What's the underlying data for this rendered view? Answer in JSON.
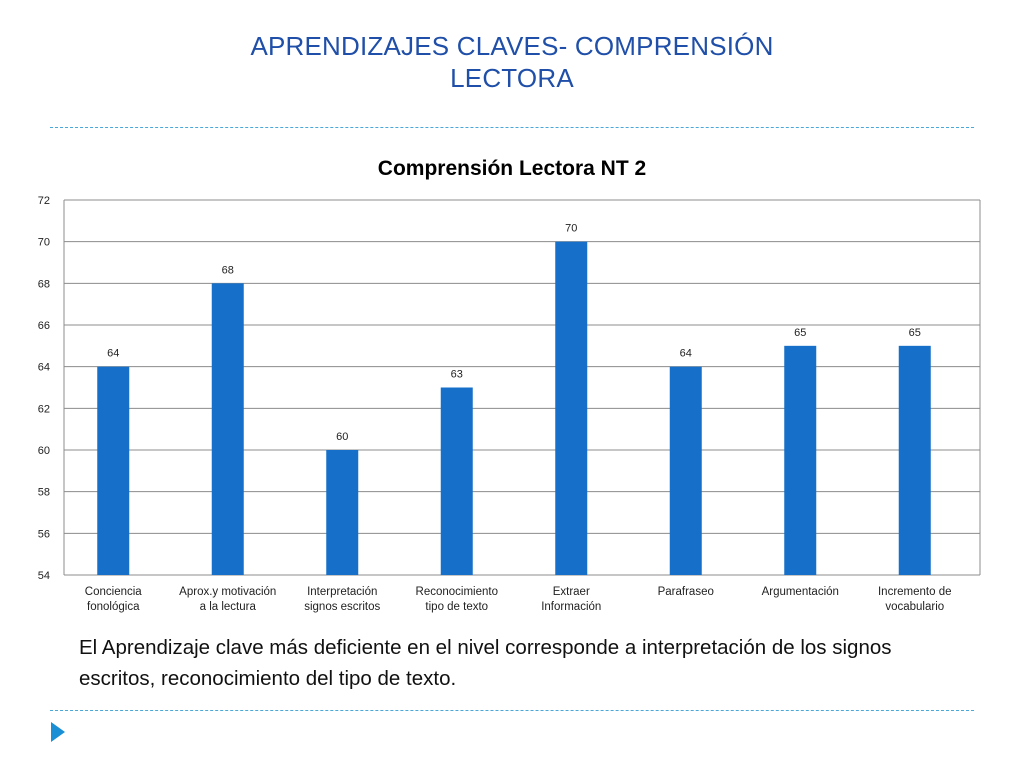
{
  "slide": {
    "title_line1": "APRENDIZAJES  CLAVES- COMPRENSIÓN",
    "title_line2": "LECTORA",
    "conclusion": "El Aprendizaje clave más deficiente en el nivel corresponde a interpretación de los signos escritos, reconocimiento del tipo de texto."
  },
  "chart_data": {
    "type": "bar",
    "title": "Comprensión Lectora NT 2",
    "categories": [
      [
        "Conciencia",
        "fonológica"
      ],
      [
        "Aprox.y motivación",
        "a la lectura"
      ],
      [
        "Interpretación",
        "signos escritos"
      ],
      [
        "Reconocimiento",
        "tipo de texto"
      ],
      [
        "Extraer",
        "Información"
      ],
      [
        "Parafraseo"
      ],
      [
        "Argumentación"
      ],
      [
        "Incremento de",
        "vocabulario"
      ]
    ],
    "values": [
      64,
      68,
      60,
      63,
      70,
      64,
      65,
      65
    ],
    "ylim": [
      54,
      72
    ],
    "yticks": [
      54,
      56,
      58,
      60,
      62,
      64,
      66,
      68,
      70,
      72
    ],
    "grid": true,
    "legend": "none",
    "data_labels": true,
    "bar_color": "#1670c9",
    "xlabel": "",
    "ylabel": ""
  },
  "theme": {
    "title_color": "#1f4fa8",
    "rule_color": "#4aa8d8",
    "arrow_color": "#1a8fd6",
    "nav_icon": "triangle-right-icon"
  }
}
